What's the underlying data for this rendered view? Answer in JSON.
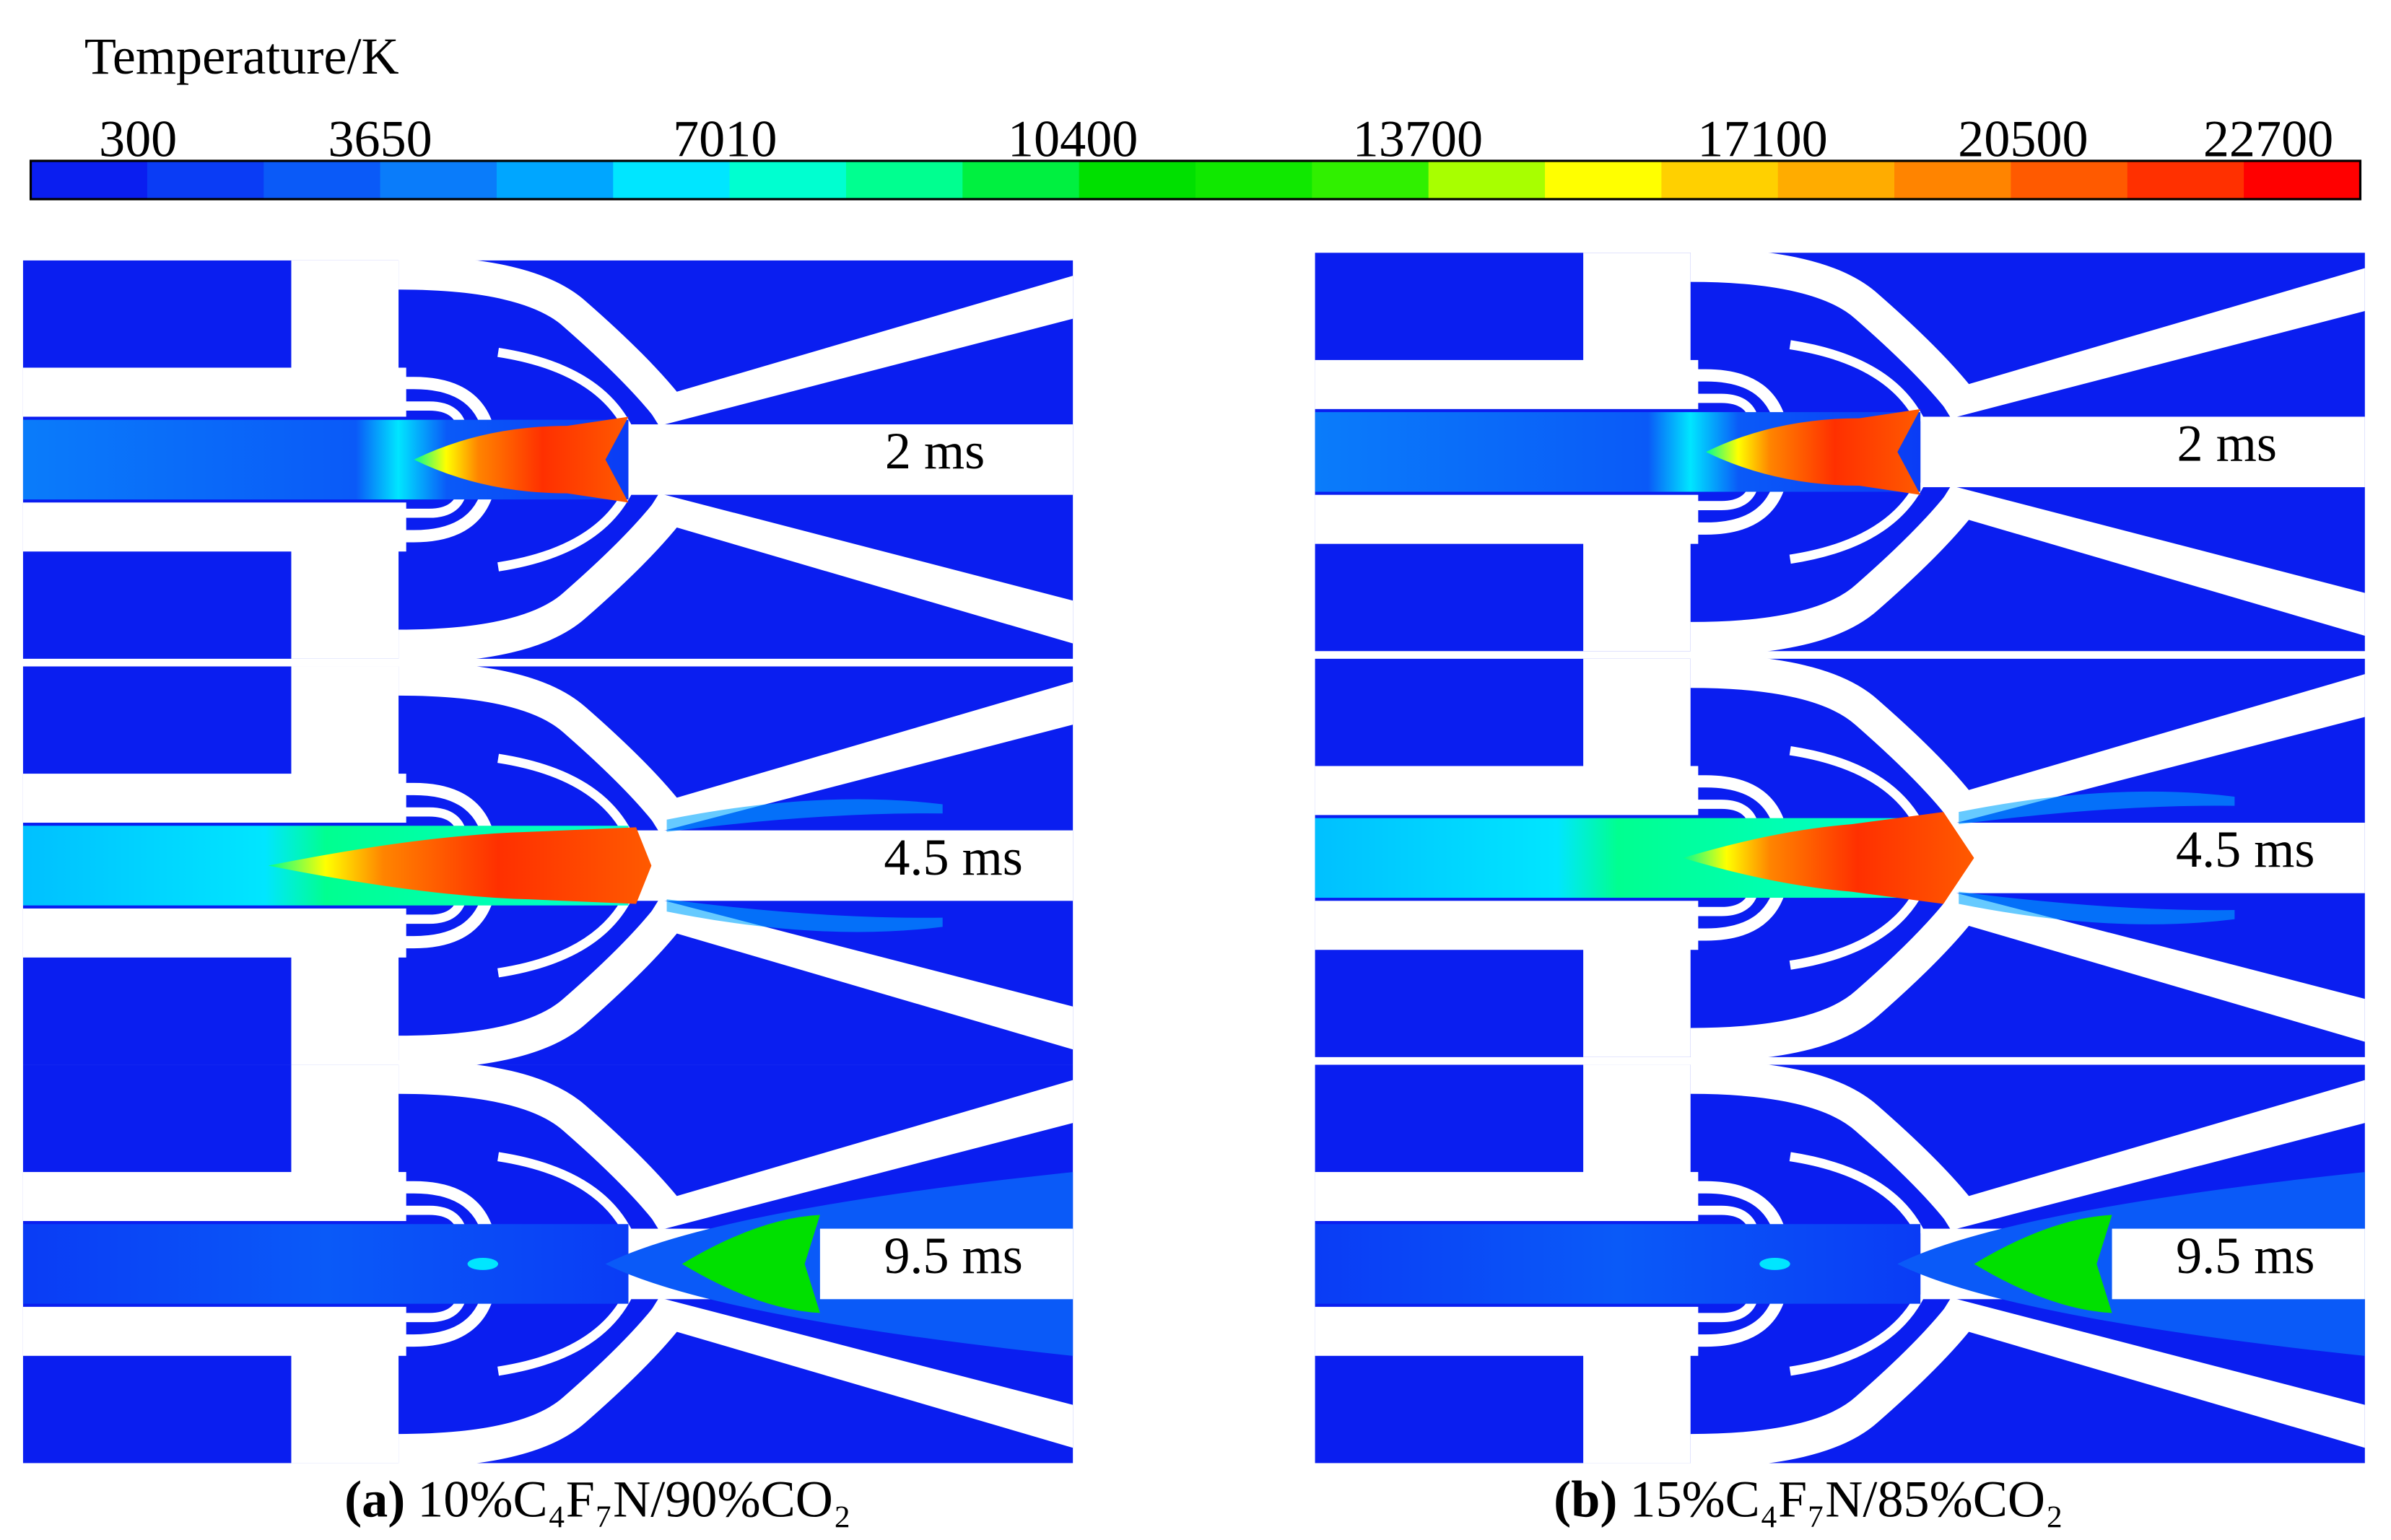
{
  "colorbar": {
    "title": "Temperature/K",
    "ticks": [
      300,
      3650,
      7010,
      10400,
      13700,
      17100,
      20500,
      22700
    ],
    "colors": [
      "#0a1ef0",
      "#0a3cf5",
      "#0a5af8",
      "#0a7cfa",
      "#00a6ff",
      "#00e6ff",
      "#00ffd0",
      "#00ff90",
      "#00f040",
      "#00e000",
      "#10e800",
      "#30f000",
      "#a8ff00",
      "#ffff00",
      "#ffd000",
      "#ffac00",
      "#ff8400",
      "#ff5a00",
      "#ff3000",
      "#ff0000"
    ]
  },
  "panels": [
    {
      "label": "(a)",
      "caption": "10%C₄F₇N/90%CO₂",
      "frames": [
        {
          "time_label": "2 ms"
        },
        {
          "time_label": "4.5 ms"
        },
        {
          "time_label": "9.5 ms"
        }
      ]
    },
    {
      "label": "(b)",
      "caption": "15%C₄F₇N/85%CO₂",
      "frames": [
        {
          "time_label": "2 ms"
        },
        {
          "time_label": "4.5 ms"
        },
        {
          "time_label": "9.5 ms"
        }
      ]
    }
  ]
}
